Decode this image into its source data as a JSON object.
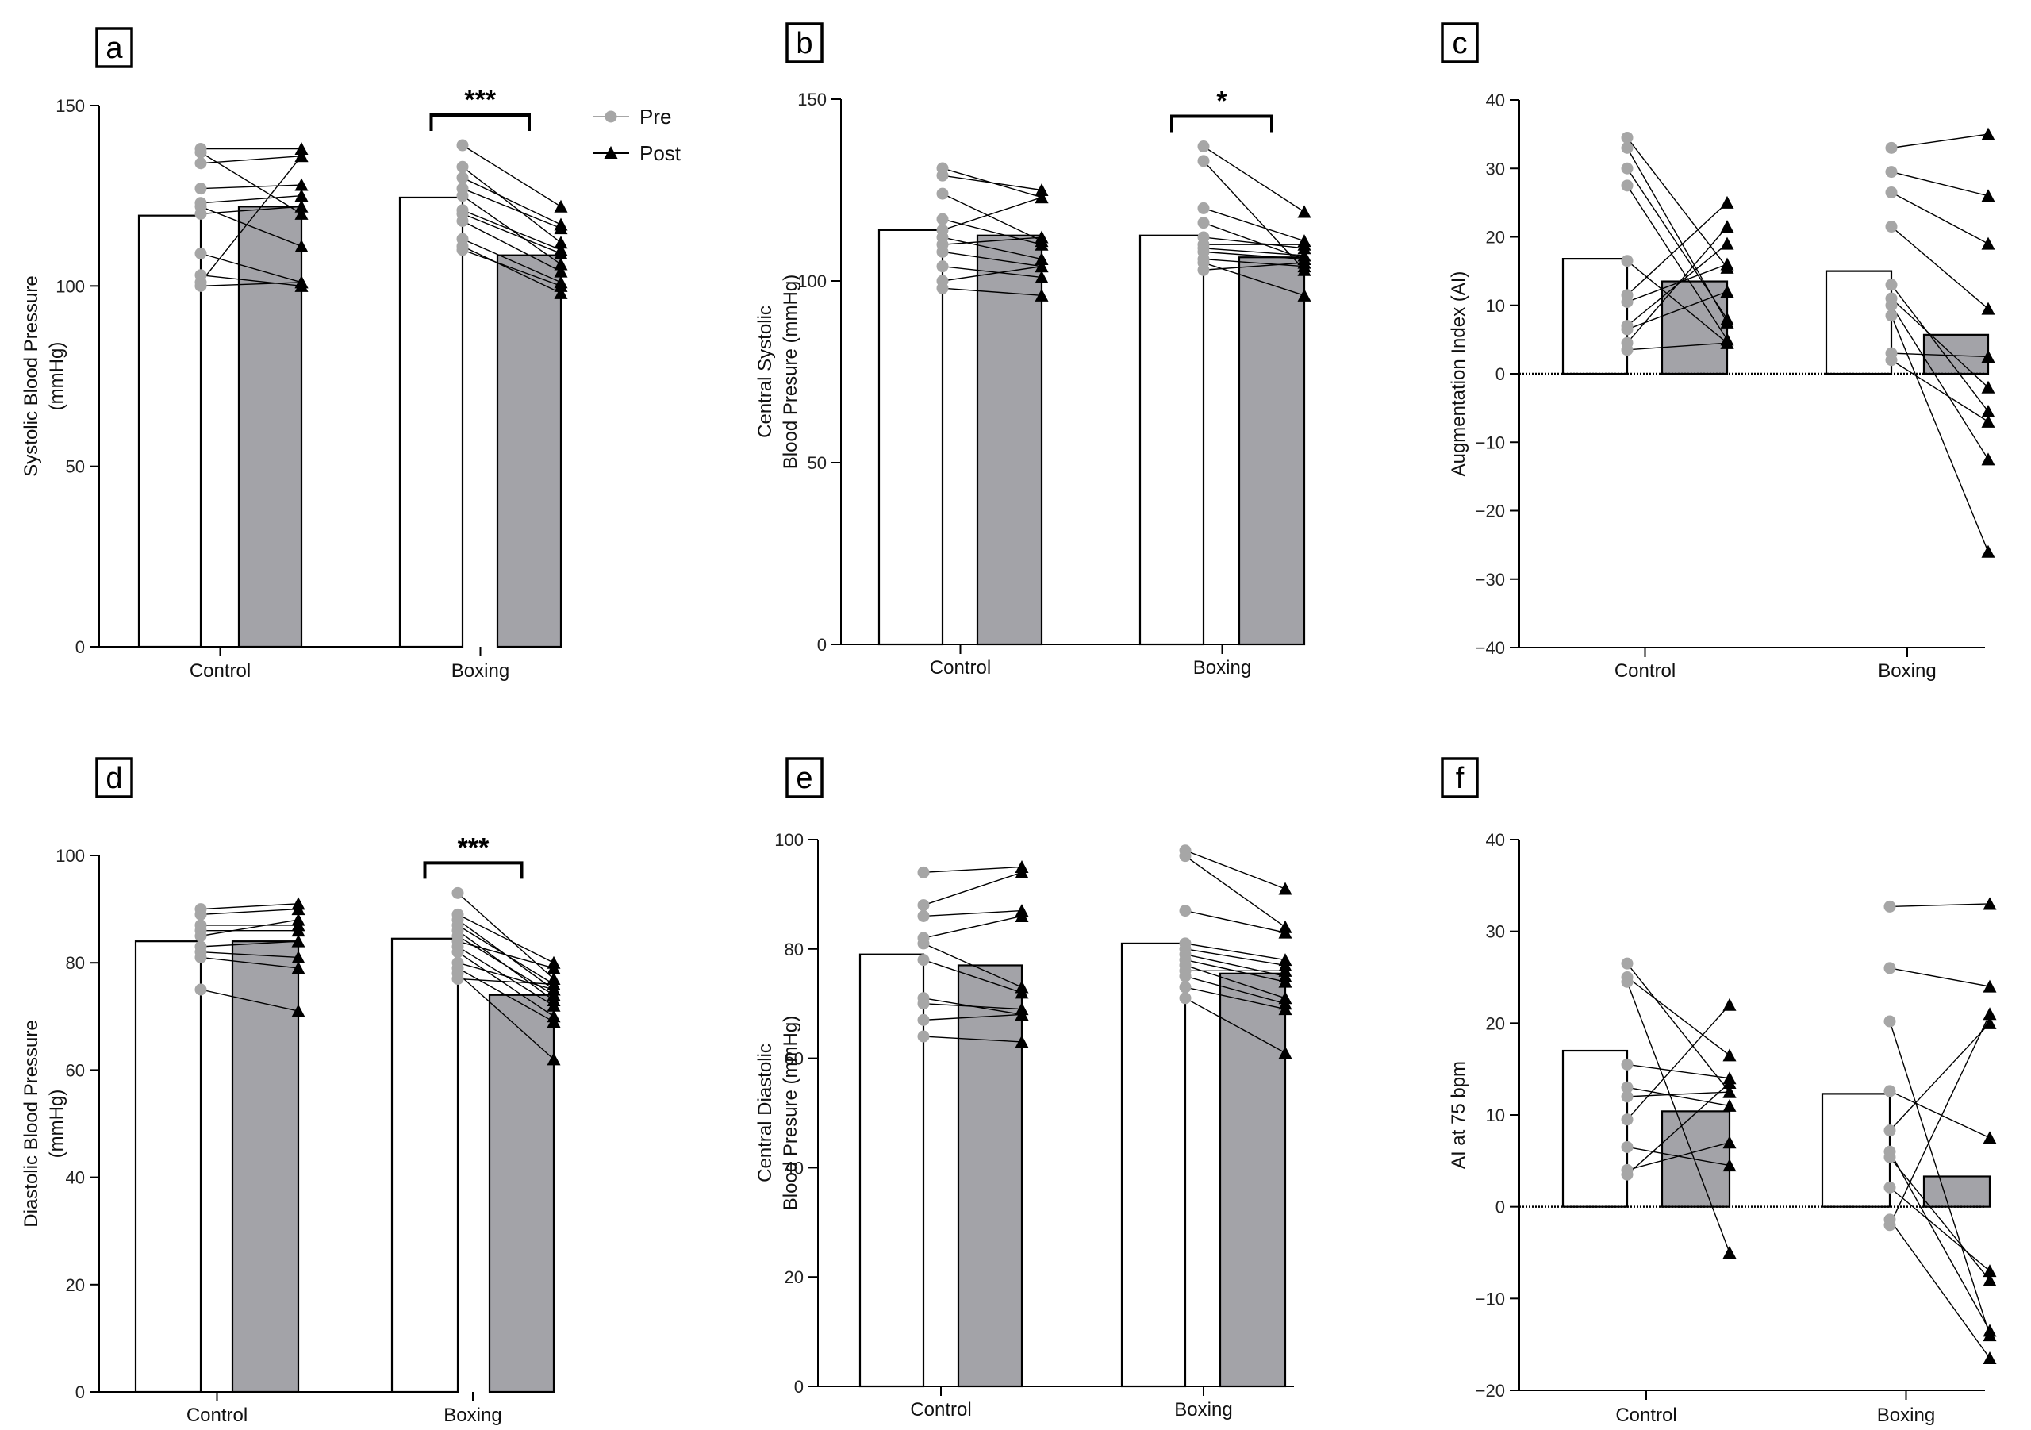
{
  "legend": {
    "pre_label": "Pre",
    "post_label": "Post"
  },
  "colors": {
    "pre_bar": "#ffffff",
    "post_bar": "#a3a3a8",
    "pre_marker": "#a6a6a6",
    "post_marker": "#000000",
    "line": "#000000"
  },
  "chart_data": [
    {
      "panel": "a",
      "type": "bar",
      "ylabel": [
        "Systolic Blood Pressure",
        "(mmHg)"
      ],
      "ylim": [
        0,
        150
      ],
      "yticks": [
        0,
        50,
        100,
        150
      ],
      "zero_line": false,
      "categories": [
        "Control",
        "Boxing"
      ],
      "series": [
        {
          "name": "Pre",
          "values": [
            119.5,
            124.5
          ]
        },
        {
          "name": "Post",
          "values": [
            122,
            108.5
          ]
        }
      ],
      "significance": [
        null,
        "***"
      ],
      "paired": [
        {
          "pre": [
            138,
            137,
            134,
            127,
            123,
            122,
            120,
            109,
            103,
            101,
            100
          ],
          "post": [
            138,
            120,
            136,
            128,
            125,
            111,
            122,
            101,
            100,
            136,
            101
          ]
        },
        {
          "pre": [
            139,
            133,
            130,
            127,
            125,
            121,
            120,
            118,
            113,
            111,
            110
          ],
          "post": [
            122,
            112,
            117,
            116,
            106,
            110,
            109,
            104,
            101,
            98,
            100
          ]
        }
      ]
    },
    {
      "panel": "b",
      "type": "bar",
      "ylabel": [
        "Central Systolic",
        "Blood Presure (mmHg)"
      ],
      "ylim": [
        0,
        150
      ],
      "yticks": [
        0,
        50,
        100,
        150
      ],
      "zero_line": false,
      "categories": [
        "Control",
        "Boxing"
      ],
      "series": [
        {
          "name": "Pre",
          "values": [
            114,
            112.5
          ]
        },
        {
          "name": "Post",
          "values": [
            112.5,
            106.5
          ]
        }
      ],
      "significance": [
        null,
        "*"
      ],
      "paired": [
        {
          "pre": [
            131,
            129,
            124,
            117,
            114,
            112,
            110,
            108,
            104,
            100,
            98
          ],
          "post": [
            123,
            125,
            111,
            110,
            123,
            106,
            112,
            104,
            101,
            104,
            96
          ]
        },
        {
          "pre": [
            137,
            133,
            120,
            116,
            112,
            110,
            109,
            108,
            106,
            105,
            103
          ],
          "post": [
            119,
            103,
            111,
            106,
            109,
            110,
            107,
            106,
            104,
            96,
            105
          ]
        }
      ]
    },
    {
      "panel": "c",
      "type": "bar",
      "ylabel": [
        "Augmentation Index (AI)"
      ],
      "ylim": [
        -40,
        40
      ],
      "yticks": [
        -40,
        -30,
        -20,
        -10,
        0,
        10,
        20,
        30,
        40
      ],
      "zero_line": true,
      "categories": [
        "Control",
        "Boxing"
      ],
      "series": [
        {
          "name": "Pre",
          "values": [
            16.8,
            15
          ]
        },
        {
          "name": "Post",
          "values": [
            13.5,
            5.7
          ]
        }
      ],
      "significance": [
        null,
        null
      ],
      "paired": [
        {
          "pre": [
            34.5,
            33,
            30,
            27.5,
            16.5,
            11.5,
            10.5,
            7,
            6.5,
            4.5,
            3.5
          ],
          "post": [
            15.5,
            7.5,
            8,
            5,
            4.5,
            25,
            16,
            19,
            12,
            21.5,
            4.5
          ]
        },
        {
          "pre": [
            33,
            29.5,
            26.5,
            21.5,
            13,
            11,
            10,
            8.5,
            3,
            2
          ],
          "post": [
            35,
            26,
            19,
            9.5,
            -5.5,
            -2,
            -12.5,
            -26,
            2.5,
            -7
          ]
        }
      ]
    },
    {
      "panel": "d",
      "type": "bar",
      "ylabel": [
        "Diastolic Blood Pressure",
        "(mmHg)"
      ],
      "ylim": [
        0,
        100
      ],
      "yticks": [
        0,
        20,
        40,
        60,
        80,
        100
      ],
      "zero_line": false,
      "categories": [
        "Control",
        "Boxing"
      ],
      "series": [
        {
          "name": "Pre",
          "values": [
            84,
            84.5
          ]
        },
        {
          "name": "Post",
          "values": [
            84,
            74
          ]
        }
      ],
      "significance": [
        null,
        "***"
      ],
      "paired": [
        {
          "pre": [
            90,
            89,
            87,
            86,
            85,
            83,
            82,
            81,
            75
          ],
          "post": [
            91,
            90,
            87,
            86,
            88,
            84,
            81,
            79,
            71
          ]
        },
        {
          "pre": [
            93,
            89,
            88,
            87,
            86,
            85,
            84,
            83,
            82,
            80,
            79,
            78,
            77
          ],
          "post": [
            77,
            80,
            75,
            76,
            73,
            74,
            79,
            72,
            70,
            75,
            69,
            62,
            76
          ]
        }
      ]
    },
    {
      "panel": "e",
      "type": "bar",
      "ylabel": [
        "Central Diastolic",
        "Blood Presure (mmHg)"
      ],
      "ylim": [
        0,
        100
      ],
      "yticks": [
        0,
        20,
        40,
        60,
        80,
        100
      ],
      "zero_line": false,
      "categories": [
        "Control",
        "Boxing"
      ],
      "series": [
        {
          "name": "Pre",
          "values": [
            79,
            81
          ]
        },
        {
          "name": "Post",
          "values": [
            77,
            75.5
          ]
        }
      ],
      "significance": [
        null,
        null
      ],
      "paired": [
        {
          "pre": [
            94,
            88,
            86,
            82,
            81,
            78,
            71,
            70,
            67,
            64
          ],
          "post": [
            95,
            94,
            87,
            86,
            73,
            72,
            68,
            69,
            68,
            63
          ]
        },
        {
          "pre": [
            98,
            97,
            87,
            81,
            80,
            79,
            78,
            77,
            76,
            75,
            73,
            71
          ],
          "post": [
            91,
            84,
            83,
            78,
            77,
            75,
            74,
            71,
            76,
            70,
            69,
            61
          ]
        }
      ]
    },
    {
      "panel": "f",
      "type": "bar",
      "ylabel": [
        "AI at 75 bpm"
      ],
      "ylim": [
        -20,
        40
      ],
      "yticks": [
        -20,
        -10,
        0,
        10,
        20,
        30,
        40
      ],
      "zero_line": true,
      "categories": [
        "Control",
        "Boxing"
      ],
      "series": [
        {
          "name": "Pre",
          "values": [
            17,
            12.3
          ]
        },
        {
          "name": "Post",
          "values": [
            10.4,
            3.3
          ]
        }
      ],
      "significance": [
        null,
        null
      ],
      "paired": [
        {
          "pre": [
            26.5,
            25,
            24.5,
            15.5,
            13,
            12,
            9.5,
            6.5,
            4,
            3.5
          ],
          "post": [
            12.5,
            16.5,
            -5,
            14,
            11,
            12.5,
            22,
            4.5,
            7,
            13.5
          ]
        },
        {
          "pre": [
            32.7,
            26,
            20.2,
            12.6,
            8.3,
            6,
            5.4,
            2.1,
            -1.4,
            -2
          ],
          "post": [
            33,
            24,
            -14,
            7.5,
            20,
            -13.5,
            -8,
            -7,
            -16.5,
            21
          ]
        }
      ]
    }
  ]
}
